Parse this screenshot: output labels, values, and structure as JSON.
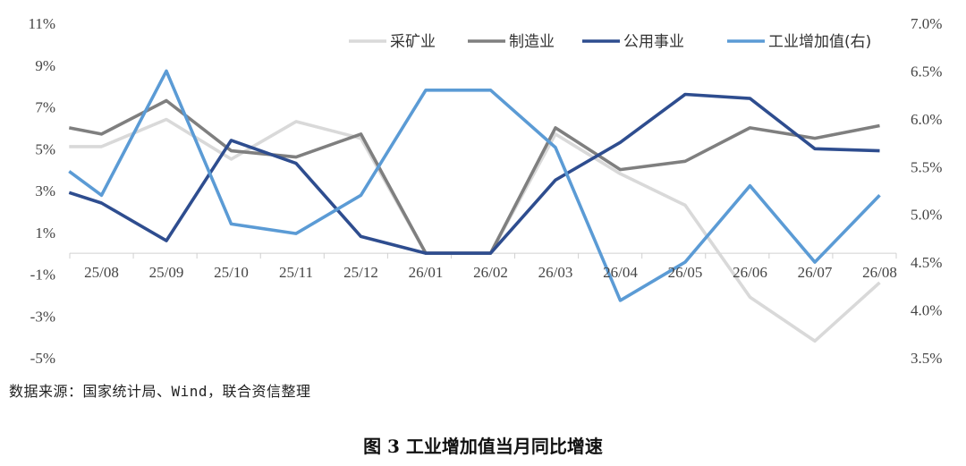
{
  "chart_data": {
    "type": "line",
    "title": "",
    "xlabel": "",
    "ylabel": "",
    "categories": [
      "25/08",
      "25/09",
      "25/10",
      "25/11",
      "25/12",
      "26/01",
      "26/02",
      "26/03",
      "26/04",
      "26/05",
      "26/06",
      "26/07",
      "26/08"
    ],
    "y_left": {
      "min": -5,
      "max": 11,
      "ticks": [
        11,
        9,
        7,
        5,
        3,
        1,
        -1,
        -3,
        -5
      ],
      "tick_labels": [
        "11%",
        "9%",
        "7%",
        "5%",
        "3%",
        "1%",
        "-1%",
        "-3%",
        "-5%"
      ]
    },
    "y_right": {
      "min": 3.5,
      "max": 7.0,
      "ticks": [
        7.0,
        6.5,
        6.0,
        5.5,
        5.0,
        4.5,
        4.0,
        3.5
      ],
      "tick_labels": [
        "7.0%",
        "6.5%",
        "6.0%",
        "5.5%",
        "5.0%",
        "4.5%",
        "4.0%",
        "3.5%"
      ]
    },
    "x_start_offset": -0.5,
    "legend_position": "top-right",
    "grid": false,
    "series": [
      {
        "name": "采矿业",
        "axis": "left",
        "color": "#d9d9d9",
        "x": [
          -0.5,
          0,
          1,
          2,
          3,
          4,
          5,
          6,
          7,
          8,
          9,
          10,
          11,
          12
        ],
        "values": [
          5.1,
          5.1,
          6.4,
          4.5,
          6.3,
          5.5,
          0.0,
          0.0,
          5.7,
          3.8,
          2.3,
          -2.1,
          -4.2,
          -1.4
        ]
      },
      {
        "name": "制造业",
        "axis": "left",
        "color": "#7f7f7f",
        "x": [
          -0.5,
          0,
          1,
          2,
          3,
          4,
          5,
          6,
          7,
          8,
          9,
          10,
          11,
          12
        ],
        "values": [
          6.0,
          5.7,
          7.3,
          4.9,
          4.6,
          5.7,
          0.0,
          0.0,
          6.0,
          4.0,
          4.4,
          6.0,
          5.5,
          6.1
        ]
      },
      {
        "name": "公用事业",
        "axis": "left",
        "color": "#2e4d8f",
        "x": [
          -0.5,
          0,
          1,
          2,
          3,
          4,
          5,
          6,
          7,
          8,
          9,
          10,
          11,
          12
        ],
        "values": [
          2.9,
          2.4,
          0.6,
          5.4,
          4.3,
          0.8,
          0.0,
          0.0,
          3.5,
          5.3,
          7.6,
          7.4,
          5.0,
          4.9
        ]
      },
      {
        "name": "工业增加值(右)",
        "axis": "right",
        "color": "#5b9bd5",
        "x": [
          -0.5,
          0,
          1,
          2,
          3,
          4,
          5,
          6,
          7,
          8,
          9,
          10,
          11,
          12
        ],
        "values": [
          5.45,
          5.2,
          6.5,
          4.9,
          4.8,
          5.2,
          6.3,
          6.3,
          5.7,
          4.1,
          4.5,
          5.3,
          4.5,
          5.2
        ]
      }
    ]
  },
  "source_text": "数据来源：国家统计局、Wind，联合资信整理",
  "caption": "图 3    工业增加值当月同比增速"
}
